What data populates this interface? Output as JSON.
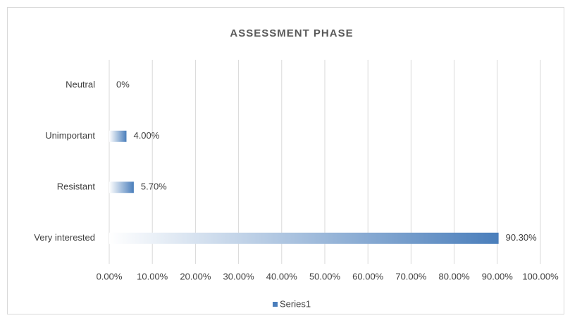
{
  "chart_data": {
    "type": "barh",
    "title": "ASSESSMENT  PHASE",
    "categories": [
      "Neutral",
      "Unimportant",
      "Resistant",
      "Very interested"
    ],
    "series": [
      {
        "name": "Series1",
        "color": "#4a7ebb",
        "values": [
          0,
          4,
          5.7,
          90.3
        ],
        "value_labels": [
          "0%",
          "4.00%",
          "5.70%",
          "90.30%"
        ]
      }
    ],
    "xlim": [
      0,
      100
    ],
    "xticks": [
      {
        "value": 0,
        "label": "0.00%"
      },
      {
        "value": 10,
        "label": "10.00%"
      },
      {
        "value": 20,
        "label": "20.00%"
      },
      {
        "value": 30,
        "label": "30.00%"
      },
      {
        "value": 40,
        "label": "40.00%"
      },
      {
        "value": 50,
        "label": "50.00%"
      },
      {
        "value": 60,
        "label": "60.00%"
      },
      {
        "value": 70,
        "label": "70.00%"
      },
      {
        "value": 80,
        "label": "80.00%"
      },
      {
        "value": 90,
        "label": "90.00%"
      },
      {
        "value": 100,
        "label": "100.00%"
      }
    ],
    "grid": true,
    "legend": "bottom"
  }
}
